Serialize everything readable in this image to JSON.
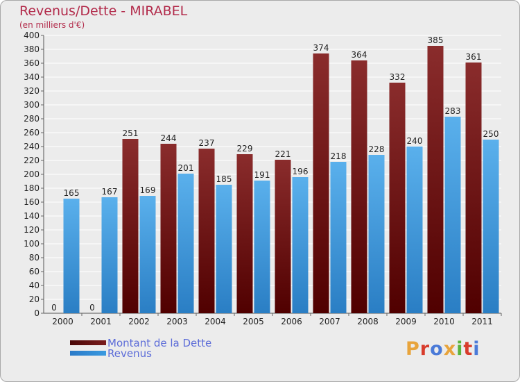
{
  "title": "Revenus/Dette - MIRABEL",
  "subtitle": "(en milliers d'€)",
  "logo": {
    "text": "Proxiti",
    "colors": [
      "#e8a43c",
      "#d83c2c",
      "#4a7ad8",
      "#e8a43c",
      "#5ab43c",
      "#d83c2c",
      "#4a7ad8"
    ]
  },
  "colors": {
    "dette": "#7a1c1c",
    "revenus": "#3a9ae0",
    "grid": "#ffffff",
    "axis": "#000000",
    "title": "#b22a4a",
    "legend_text": "#5c6cd8"
  },
  "chart_data": {
    "type": "bar",
    "title": "Revenus/Dette - MIRABEL",
    "subtitle": "(en milliers d'€)",
    "categories": [
      "2000",
      "2001",
      "2002",
      "2003",
      "2004",
      "2005",
      "2006",
      "2007",
      "2008",
      "2009",
      "2010",
      "2011"
    ],
    "series": [
      {
        "name": "Montant de la Dette",
        "values": [
          0,
          0,
          251,
          244,
          237,
          229,
          221,
          374,
          364,
          332,
          385,
          361
        ]
      },
      {
        "name": "Revenus",
        "values": [
          165,
          167,
          169,
          201,
          185,
          191,
          196,
          218,
          228,
          240,
          283,
          250
        ]
      }
    ],
    "ylim": [
      0,
      400
    ],
    "ytick_step": 20,
    "grid": true,
    "legend_position": "bottom-left"
  }
}
